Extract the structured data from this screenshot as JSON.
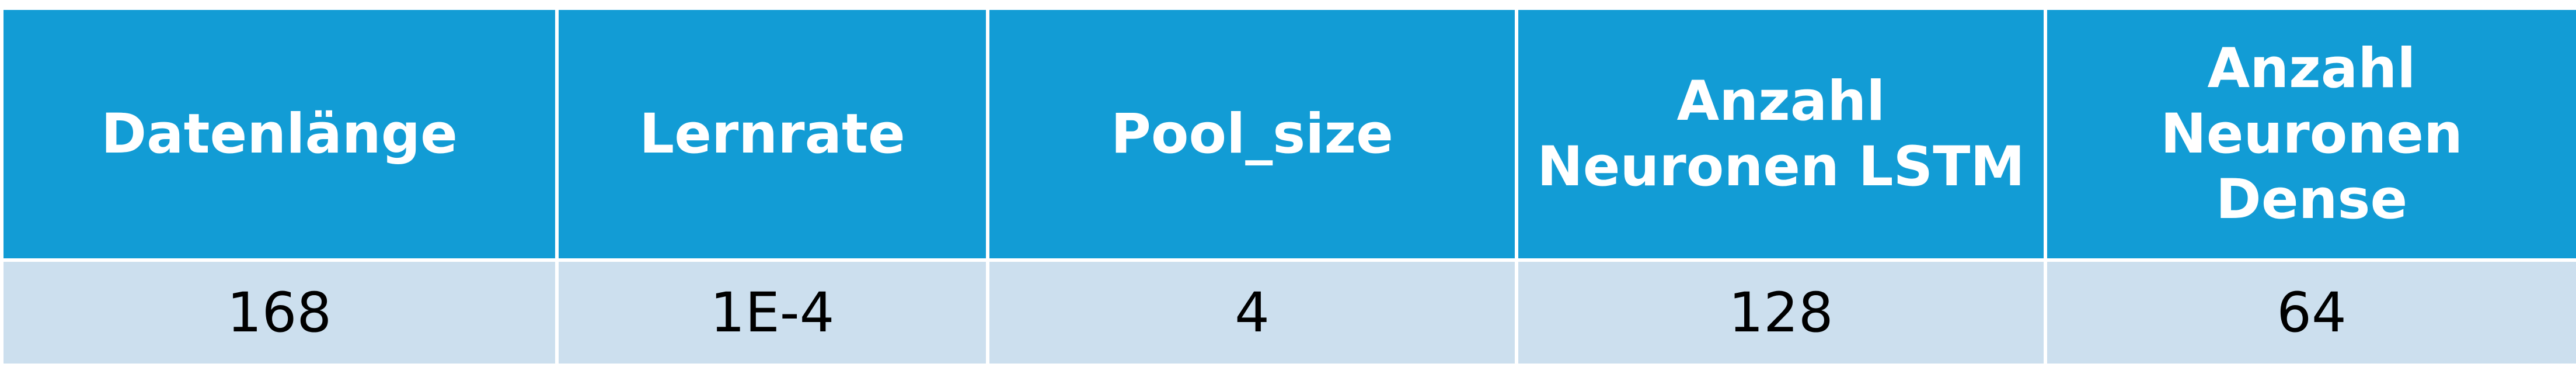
{
  "table": {
    "headers": [
      "Datenlänge",
      "Lernrate",
      "Pool_size",
      "Anzahl\nNeuronen LSTM",
      "Anzahl\nNeuronen\nDense"
    ],
    "header_lines": [
      [
        "Datenlänge"
      ],
      [
        "Lernrate"
      ],
      [
        "Pool_size"
      ],
      [
        "Anzahl",
        "Neuronen LSTM"
      ],
      [
        "Anzahl",
        "Neuronen",
        "Dense"
      ]
    ],
    "rows": [
      [
        "168",
        "1E-4",
        "4",
        "128",
        "64"
      ]
    ],
    "colors": {
      "header_background": "#129cd5",
      "header_text": "#ffffff",
      "row_background": "#ccdfee",
      "row_text": "#000000",
      "grid_lines": "#ffffff"
    }
  }
}
